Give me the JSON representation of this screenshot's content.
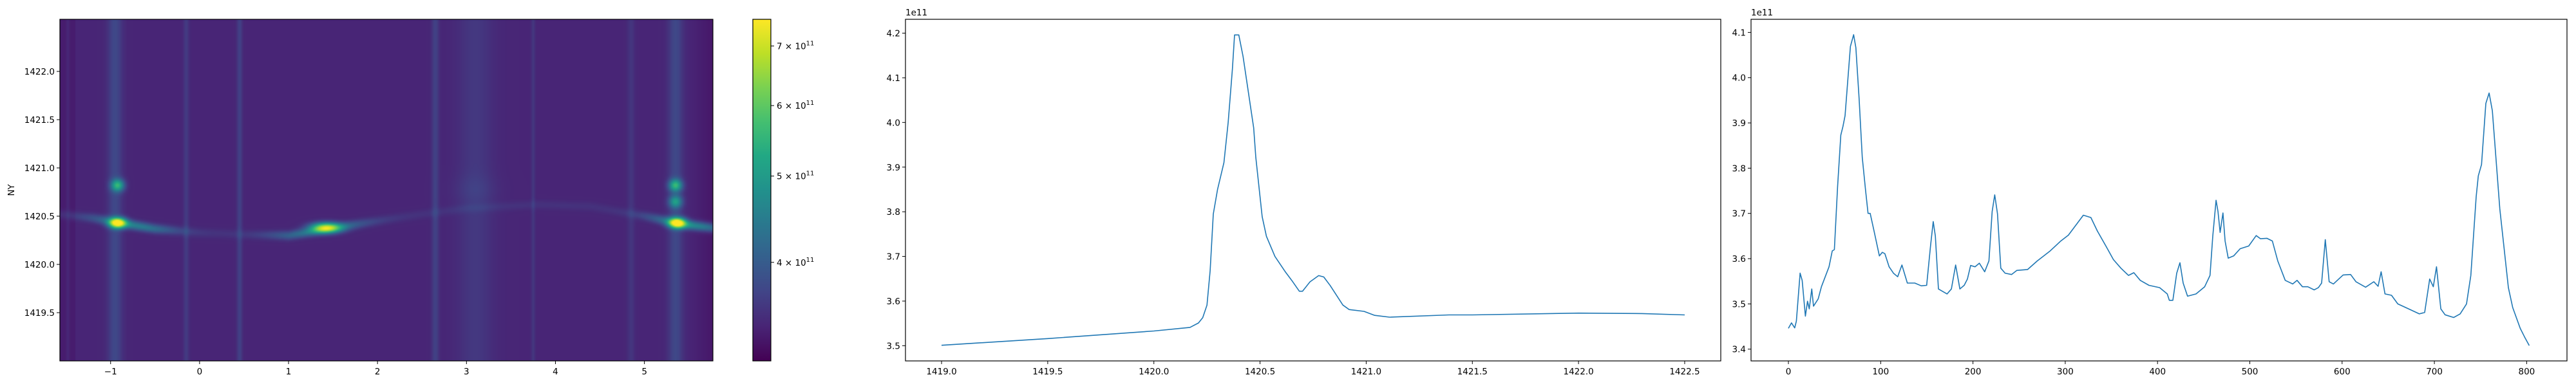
{
  "chart_data": [
    {
      "type": "heatmap",
      "ylabel": "NY",
      "xlabel": "",
      "xlim": [
        -1.57,
        5.77
      ],
      "ylim": [
        1419.0,
        1422.54
      ],
      "xticks": [
        "-1",
        "0",
        "1",
        "2",
        "3",
        "4",
        "5"
      ],
      "yticks": [
        "1419.5",
        "1420.0",
        "1420.5",
        "1421.0",
        "1421.5",
        "1422.0"
      ],
      "colormap": "viridis",
      "colorbar": {
        "scale": "log",
        "range": [
          310000000000.0,
          750000000000.0
        ],
        "ticks": [
          {
            "value": 400000000000.0,
            "base": "4 × 10",
            "exp": "11"
          },
          {
            "value": 500000000000.0,
            "base": "5 × 10",
            "exp": "11"
          },
          {
            "value": 600000000000.0,
            "base": "6 × 10",
            "exp": "11"
          },
          {
            "value": 700000000000.0,
            "base": "7 × 10",
            "exp": "11"
          }
        ]
      },
      "background_value": 340000000000.0,
      "vertical_streaks_x": [
        -1.48,
        -0.95,
        -0.15,
        0.45,
        2.65,
        3.1,
        3.75,
        4.85,
        5.35
      ],
      "ridge": [
        [
          -1.57,
          1420.52
        ],
        [
          -1.2,
          1420.48
        ],
        [
          -0.9,
          1420.43
        ],
        [
          -0.5,
          1420.37
        ],
        [
          0,
          1420.33
        ],
        [
          0.5,
          1420.31
        ],
        [
          1.0,
          1420.3
        ],
        [
          1.4,
          1420.36
        ],
        [
          2.0,
          1420.45
        ],
        [
          2.5,
          1420.52
        ],
        [
          3.0,
          1420.58
        ],
        [
          3.8,
          1420.62
        ],
        [
          4.4,
          1420.6
        ],
        [
          5.0,
          1420.5
        ],
        [
          5.4,
          1420.42
        ],
        [
          5.77,
          1420.38
        ]
      ],
      "hotspots": [
        {
          "x": -0.92,
          "y": 1420.43,
          "value": 740000000000.0
        },
        {
          "x": -0.92,
          "y": 1420.82,
          "value": 530000000000.0
        },
        {
          "x": 1.42,
          "y": 1420.38,
          "value": 660000000000.0
        },
        {
          "x": 5.37,
          "y": 1420.43,
          "value": 740000000000.0
        },
        {
          "x": 5.35,
          "y": 1420.82,
          "value": 530000000000.0
        },
        {
          "x": 5.35,
          "y": 1420.65,
          "value": 480000000000.0
        }
      ]
    },
    {
      "type": "line",
      "offset_text": "1e11",
      "xlim": [
        1418.83,
        1422.67
      ],
      "ylim": [
        3.466,
        4.231
      ],
      "xticks": [
        "1419.0",
        "1419.5",
        "1420.0",
        "1420.5",
        "1421.0",
        "1421.5",
        "1422.0",
        "1422.5"
      ],
      "yticks": [
        "3.5",
        "3.6",
        "3.7",
        "3.8",
        "3.9",
        "4.0",
        "4.1",
        "4.2"
      ],
      "color": "#1f77b4",
      "x": [
        1419.0,
        1419.5,
        1420.0,
        1420.17,
        1420.21,
        1420.23,
        1420.25,
        1420.265,
        1420.28,
        1420.3,
        1420.33,
        1420.35,
        1420.37,
        1420.38,
        1420.4,
        1420.42,
        1420.47,
        1420.48,
        1420.51,
        1420.53,
        1420.57,
        1420.62,
        1420.65,
        1420.685,
        1420.7,
        1420.735,
        1420.776,
        1420.8,
        1420.83,
        1420.89,
        1420.92,
        1420.99,
        1421.04,
        1421.11,
        1421.39,
        1421.5,
        1422.0,
        1422.3,
        1422.5
      ],
      "y": [
        3.501,
        3.516,
        3.533,
        3.541,
        3.551,
        3.563,
        3.591,
        3.668,
        3.795,
        3.85,
        3.91,
        4.0,
        4.12,
        4.196,
        4.196,
        4.148,
        3.988,
        3.922,
        3.789,
        3.745,
        3.7,
        3.665,
        3.646,
        3.622,
        3.622,
        3.643,
        3.657,
        3.654,
        3.635,
        3.591,
        3.581,
        3.577,
        3.568,
        3.564,
        3.569,
        3.569,
        3.573,
        3.572,
        3.569
      ]
    },
    {
      "type": "line",
      "offset_text": "1e11",
      "xlim": [
        -40.5,
        843.7
      ],
      "ylim": [
        3.374,
        4.129
      ],
      "xticks": [
        "0",
        "100",
        "200",
        "300",
        "400",
        "500",
        "600",
        "700",
        "800"
      ],
      "yticks": [
        "3.4",
        "3.5",
        "3.6",
        "3.7",
        "3.8",
        "3.9",
        "4.0",
        "4.1"
      ],
      "color": "#1f77b4",
      "x": [
        0,
        3.3,
        6.8,
        8.6,
        12.7,
        14.9,
        18.4,
        20.7,
        22.6,
        25.3,
        27.2,
        32.3,
        35.8,
        44,
        47.5,
        49.8,
        53.3,
        56.8,
        59.1,
        61.4,
        67.2,
        70.7,
        73.1,
        76.6,
        80,
        83.5,
        86.3,
        88.6,
        92.8,
        98.6,
        101.7,
        104.5,
        109.1,
        113.8,
        118.4,
        123,
        128.9,
        137,
        144,
        149.8,
        154,
        156.9,
        159.2,
        162.6,
        171.9,
        176.6,
        181.2,
        185.8,
        190.5,
        194,
        197.5,
        202.2,
        206.9,
        212.7,
        217.3,
        220.8,
        223.6,
        226.6,
        230.1,
        234.8,
        241.8,
        247.6,
        259.2,
        269.6,
        283.6,
        295.2,
        303.4,
        311.5,
        319.6,
        327.8,
        334.8,
        344,
        352.2,
        360.3,
        368.5,
        374.3,
        381.3,
        390.7,
        402.3,
        410.5,
        412.8,
        416.6,
        420.8,
        424.3,
        427.8,
        432.5,
        441.7,
        451.1,
        456.9,
        459.9,
        463.4,
        465.5,
        467.8,
        470.9,
        473.2,
        476.6,
        482.5,
        489.5,
        498.8,
        506.9,
        511.6,
        518.5,
        524.4,
        530.3,
        538.4,
        546.5,
        551.2,
        557,
        562.8,
        569.8,
        574.3,
        577.8,
        581.8,
        586,
        590.6,
        596.4,
        601.1,
        609.2,
        615,
        625.5,
        634.4,
        639,
        642.3,
        646.5,
        653.5,
        660.4,
        672.1,
        683.7,
        689.5,
        694.9,
        698.8,
        702.3,
        707,
        711.6,
        720.9,
        727.9,
        734.8,
        739.5,
        745.3,
        747.6,
        751.1,
        755.8,
        759.3,
        762.8,
        770.9,
        780.2,
        784.9,
        793,
        797.7,
        802.8
      ],
      "y": [
        3.446,
        3.458,
        3.447,
        3.462,
        3.568,
        3.552,
        3.473,
        3.506,
        3.489,
        3.533,
        3.495,
        3.511,
        3.538,
        3.582,
        3.617,
        3.62,
        3.759,
        3.873,
        3.892,
        3.916,
        4.069,
        4.095,
        4.066,
        3.954,
        3.824,
        3.753,
        3.7,
        3.7,
        3.661,
        3.606,
        3.614,
        3.611,
        3.582,
        3.568,
        3.56,
        3.586,
        3.546,
        3.546,
        3.54,
        3.541,
        3.628,
        3.682,
        3.65,
        3.533,
        3.522,
        3.533,
        3.586,
        3.533,
        3.541,
        3.555,
        3.585,
        3.582,
        3.59,
        3.571,
        3.595,
        3.704,
        3.741,
        3.699,
        3.579,
        3.568,
        3.565,
        3.574,
        3.576,
        3.595,
        3.617,
        3.639,
        3.652,
        3.674,
        3.696,
        3.691,
        3.661,
        3.628,
        3.598,
        3.579,
        3.563,
        3.569,
        3.552,
        3.541,
        3.536,
        3.522,
        3.508,
        3.508,
        3.568,
        3.591,
        3.546,
        3.517,
        3.522,
        3.538,
        3.563,
        3.65,
        3.729,
        3.704,
        3.658,
        3.701,
        3.639,
        3.601,
        3.606,
        3.622,
        3.628,
        3.651,
        3.644,
        3.645,
        3.639,
        3.595,
        3.552,
        3.544,
        3.552,
        3.538,
        3.538,
        3.531,
        3.536,
        3.546,
        3.642,
        3.549,
        3.544,
        3.555,
        3.564,
        3.565,
        3.549,
        3.537,
        3.549,
        3.539,
        3.571,
        3.522,
        3.519,
        3.5,
        3.489,
        3.478,
        3.481,
        3.555,
        3.538,
        3.582,
        3.489,
        3.476,
        3.47,
        3.478,
        3.5,
        3.563,
        3.737,
        3.783,
        3.808,
        3.943,
        3.966,
        3.927,
        3.71,
        3.536,
        3.492,
        3.446,
        3.427,
        3.408
      ]
    }
  ]
}
